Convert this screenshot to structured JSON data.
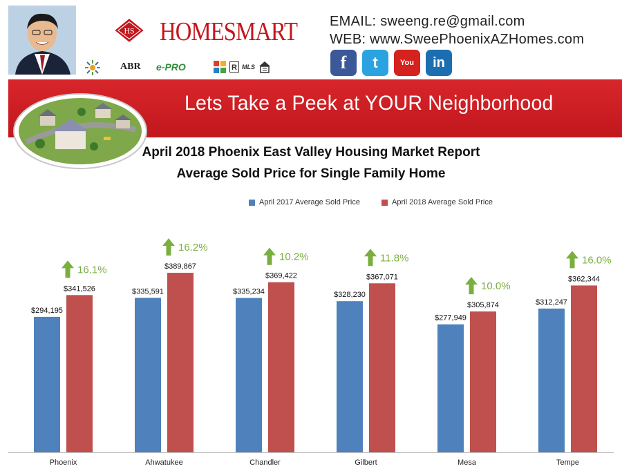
{
  "header": {
    "brand": "HOMESMART",
    "email_line": "EMAIL:  sweeng.re@gmail.com",
    "web_line": "WEB: www.SweePhoenixAZHomes.com",
    "badges": [
      "ABR",
      "e-PRO",
      "MLS"
    ],
    "social": [
      {
        "label": "f",
        "icon": "facebook-icon",
        "color": "#3b5998"
      },
      {
        "label": "t",
        "icon": "twitter-icon",
        "color": "#2aa3e0"
      },
      {
        "label": "You",
        "icon": "youtube-icon",
        "color": "#d4221e"
      },
      {
        "label": "in",
        "icon": "linkedin-icon",
        "color": "#1b6fb1"
      }
    ]
  },
  "banner": {
    "text": "Lets Take a Peek at YOUR Neighborhood"
  },
  "chart_data": {
    "type": "bar",
    "title": "April 2018 Phoenix East Valley Housing Market Report",
    "subtitle": "Average Sold Price for Single Family Home",
    "categories": [
      "Phoenix",
      "Ahwatukee",
      "Chandler",
      "Gilbert",
      "Mesa",
      "Tempe"
    ],
    "series": [
      {
        "name": "April 2017 Average Sold Price",
        "color": "#4f81bd",
        "values": [
          294195,
          335591,
          335234,
          328230,
          277949,
          312247
        ],
        "labels": [
          "$294,195",
          "$335,591",
          "$335,234",
          "$328,230",
          "$277,949",
          "$312,247"
        ]
      },
      {
        "name": "April 2018 Average Sold Price",
        "color": "#c0504d",
        "values": [
          341526,
          389867,
          369422,
          367071,
          305874,
          362344
        ],
        "labels": [
          "$341,526",
          "$389,867",
          "$369,422",
          "$367,071",
          "$305,874",
          "$362,344"
        ]
      }
    ],
    "change_labels": [
      "16.1%",
      "16.2%",
      "10.2%",
      "11.8%",
      "10.0%",
      "16.0%"
    ],
    "change_color": "#7aae3f",
    "ylim": [
      0,
      450000
    ],
    "grid": false,
    "legend": "top-center"
  }
}
